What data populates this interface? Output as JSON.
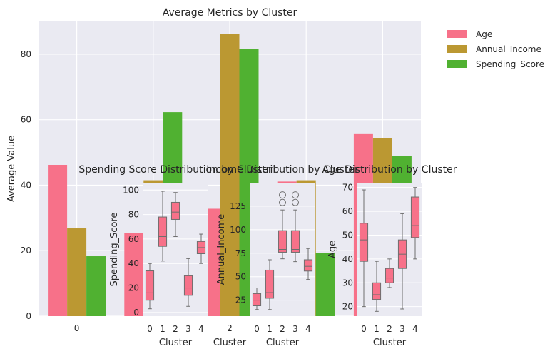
{
  "chart_data": [
    {
      "type": "bar",
      "title": "Average Metrics by Cluster",
      "xlabel": "Cluster",
      "ylabel": "Average Value",
      "categories": [
        "0",
        "1",
        "2",
        "3",
        "4"
      ],
      "category_labels": [
        "0",
        "",
        "2",
        "",
        ""
      ],
      "ylim": [
        0,
        90
      ],
      "yticks": [
        0,
        20,
        40,
        60,
        80
      ],
      "grid": true,
      "legend": "outside-right",
      "series": [
        {
          "name": "Age",
          "color": "#f77189",
          "values": [
            46.2,
            25.3,
            32.8,
            41.1,
            55.6
          ]
        },
        {
          "name": "Annual_Income",
          "color": "#bb9832",
          "values": [
            26.8,
            41.5,
            86.1,
            41.5,
            54.4
          ]
        },
        {
          "name": "Spending_Score",
          "color": "#50b131",
          "values": [
            18.3,
            62.3,
            81.5,
            19.2,
            48.9
          ]
        }
      ]
    },
    {
      "type": "boxplot",
      "title": "Spending Score Distribution by Cluster",
      "xlabel": "Cluster",
      "ylabel": "Spending_Score",
      "categories": [
        "0",
        "1",
        "2",
        "3",
        "4"
      ],
      "ylim": [
        -3,
        106
      ],
      "yticks": [
        0,
        20,
        40,
        60,
        80,
        100
      ],
      "boxes": [
        {
          "whislo": 3,
          "q1": 10,
          "med": 16,
          "q3": 34,
          "whishi": 40
        },
        {
          "whislo": 42,
          "q1": 54,
          "med": 62,
          "q3": 78,
          "whishi": 99
        },
        {
          "whislo": 62,
          "q1": 76,
          "med": 82,
          "q3": 90,
          "whishi": 98
        },
        {
          "whislo": 5,
          "q1": 14,
          "med": 20,
          "q3": 30,
          "whishi": 44
        },
        {
          "whislo": 40,
          "q1": 48,
          "med": 53,
          "q3": 58,
          "whishi": 64
        }
      ]
    },
    {
      "type": "boxplot",
      "title": "Income Distribution by Cluster",
      "xlabel": "Cluster",
      "ylabel": "Annual_Income",
      "categories": [
        "0",
        "1",
        "2",
        "3",
        "4"
      ],
      "ylim": [
        8,
        150
      ],
      "yticks": [
        25,
        50,
        75,
        100,
        125
      ],
      "boxes": [
        {
          "whislo": 15,
          "q1": 19,
          "med": 25,
          "q3": 32,
          "whishi": 38,
          "fliers": []
        },
        {
          "whislo": 15,
          "q1": 27,
          "med": 33,
          "q3": 57,
          "whishi": 68,
          "fliers": []
        },
        {
          "whislo": 69,
          "q1": 76,
          "med": 79,
          "q3": 99,
          "whishi": 121,
          "fliers": [
            129,
            137
          ]
        },
        {
          "whislo": 66,
          "q1": 76,
          "med": 79,
          "q3": 99,
          "whishi": 121,
          "fliers": [
            129,
            137
          ]
        },
        {
          "whislo": 47,
          "q1": 56,
          "med": 61,
          "q3": 68,
          "whishi": 80,
          "fliers": []
        }
      ]
    },
    {
      "type": "boxplot",
      "title": "Age Distribution by Cluster",
      "xlabel": "Cluster",
      "ylabel": "Age",
      "categories": [
        "0",
        "1",
        "2",
        "3",
        "4"
      ],
      "ylim": [
        16,
        72
      ],
      "yticks": [
        20,
        30,
        40,
        50,
        60,
        70
      ],
      "boxes": [
        {
          "whislo": 20,
          "q1": 39,
          "med": 48,
          "q3": 55,
          "whishi": 69
        },
        {
          "whislo": 18,
          "q1": 23,
          "med": 25,
          "q3": 30,
          "whishi": 39
        },
        {
          "whislo": 28,
          "q1": 30,
          "med": 32,
          "q3": 36,
          "whishi": 40
        },
        {
          "whislo": 19,
          "q1": 36,
          "med": 42,
          "q3": 48,
          "whishi": 59
        },
        {
          "whislo": 40,
          "q1": 49,
          "med": 54,
          "q3": 66,
          "whishi": 70
        }
      ]
    }
  ]
}
